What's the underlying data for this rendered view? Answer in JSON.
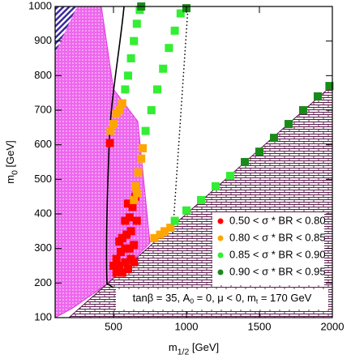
{
  "chart_data": {
    "type": "scatter",
    "xlabel": [
      {
        "text": "m"
      },
      {
        "sub": "1/2"
      },
      {
        "text": " [GeV]"
      }
    ],
    "ylabel": [
      {
        "text": "m"
      },
      {
        "sub": "0"
      },
      {
        "text": " [GeV]"
      }
    ],
    "annotation": [
      {
        "text": "tanβ = 35, A"
      },
      {
        "sub": "0"
      },
      {
        "text": " = 0, μ < 0, m"
      },
      {
        "sub": "t"
      },
      {
        "text": " = 170 GeV"
      }
    ],
    "xlim": [
      100,
      2000
    ],
    "ylim": [
      100,
      1000
    ],
    "xticks": [
      500,
      1000,
      1500,
      2000
    ],
    "yticks": [
      100,
      200,
      300,
      400,
      500,
      600,
      700,
      800,
      900,
      1000
    ],
    "legend_position": "lower right",
    "series": [
      {
        "name": "0.50 < σ * BR < 0.80",
        "color": "#ff0000",
        "x": [
          475,
          500,
          520,
          540,
          560,
          580,
          600,
          620,
          640,
          520,
          550,
          580,
          610,
          640,
          540,
          560,
          590,
          620,
          580,
          610,
          630,
          650,
          600,
          660
        ],
        "y": [
          605,
          250,
          230,
          250,
          230,
          260,
          240,
          270,
          260,
          270,
          290,
          300,
          300,
          310,
          320,
          330,
          340,
          350,
          380,
          390,
          420,
          450,
          430,
          380
        ]
      },
      {
        "name": "0.80 < σ * BR < 0.85",
        "color": "#ffa500",
        "x": [
          480,
          500,
          520,
          540,
          560,
          640,
          660,
          650,
          670,
          690,
          700,
          780,
          820,
          850,
          890
        ],
        "y": [
          640,
          660,
          690,
          700,
          720,
          440,
          460,
          480,
          520,
          560,
          590,
          330,
          340,
          350,
          360
        ]
      },
      {
        "name": "0.85 < σ * BR < 0.90",
        "color": "#33ee33",
        "x": [
          580,
          600,
          620,
          640,
          660,
          680,
          720,
          760,
          800,
          840,
          880,
          920,
          960,
          920,
          1000,
          1100,
          1200,
          1300
        ],
        "y": [
          760,
          800,
          850,
          900,
          950,
          990,
          640,
          700,
          760,
          820,
          880,
          930,
          980,
          380,
          410,
          440,
          480,
          510
        ]
      },
      {
        "name": "0.90 < σ * BR < 0.95",
        "color": "#1a8a1a",
        "x": [
          1400,
          1500,
          1600,
          1700,
          1800,
          1900,
          1980,
          1000,
          690
        ],
        "y": [
          550,
          580,
          620,
          660,
          700,
          740,
          770,
          995,
          1000
        ]
      }
    ]
  }
}
